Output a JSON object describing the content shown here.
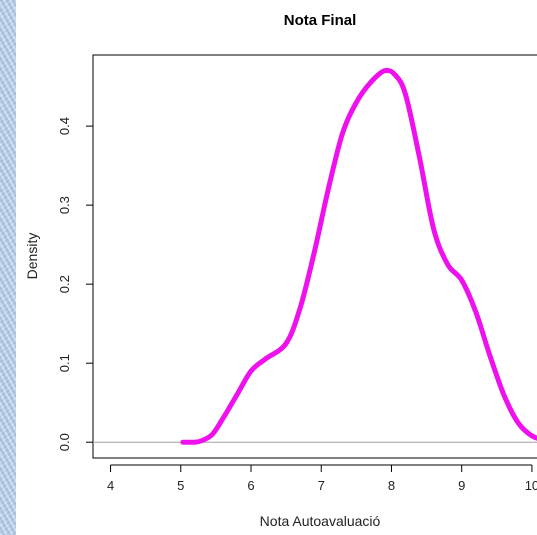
{
  "chart_data": {
    "type": "line",
    "title": "Nota Final",
    "xlabel": "Nota Autoavaluació",
    "ylabel": "Density",
    "xlim": [
      3.75,
      10.3
    ],
    "ylim": [
      -0.02,
      0.49
    ],
    "x_ticks": [
      "4",
      "5",
      "6",
      "7",
      "8",
      "9",
      "10"
    ],
    "y_ticks": [
      "0.0",
      "0.1",
      "0.2",
      "0.3",
      "0.4"
    ],
    "baseline": 0,
    "series": [
      {
        "color": "#ee11ee",
        "x": [
          5.03,
          5.2,
          5.3,
          5.45,
          5.6,
          5.8,
          6.0,
          6.2,
          6.5,
          6.7,
          6.9,
          7.1,
          7.3,
          7.5,
          7.7,
          7.9,
          8.05,
          8.2,
          8.4,
          8.6,
          8.8,
          9.0,
          9.2,
          9.4,
          9.6,
          9.8,
          10.0,
          10.2
        ],
        "y": [
          0.0,
          0.0,
          0.002,
          0.01,
          0.03,
          0.06,
          0.09,
          0.105,
          0.125,
          0.17,
          0.24,
          0.32,
          0.39,
          0.43,
          0.455,
          0.47,
          0.465,
          0.44,
          0.36,
          0.27,
          0.225,
          0.205,
          0.165,
          0.11,
          0.06,
          0.025,
          0.008,
          0.002
        ]
      }
    ]
  }
}
